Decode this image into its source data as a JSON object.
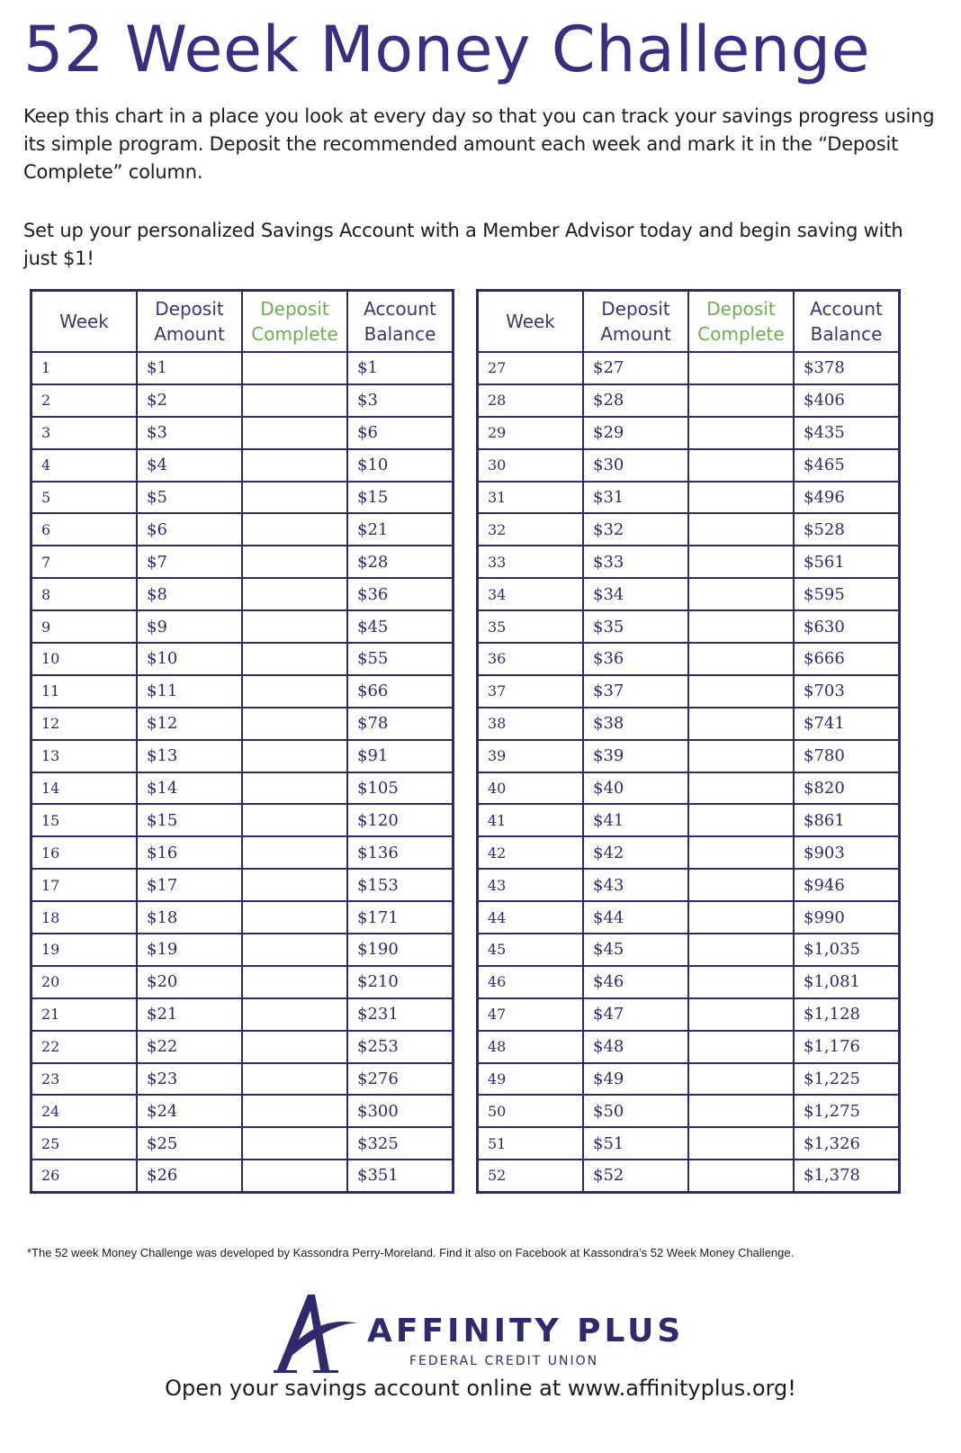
{
  "title": "52 Week Money Challenge",
  "intro": "Keep this chart in a place you look at every day so that you can track your savings progress using its simple program. Deposit the recommended amount each week and mark it in the “Deposit Complete” column.",
  "cta_text": "Set up your personalized Savings Account with a Member Advisor today and begin saving with just $1!",
  "table": {
    "headers": {
      "week": "Week",
      "deposit_amount_1": "Deposit",
      "deposit_amount_2": "Amount",
      "deposit_complete_1": "Deposit",
      "deposit_complete_2": "Complete",
      "account_balance_1": "Account",
      "account_balance_2": "Balance"
    },
    "header_colors": {
      "default": "#3b3570",
      "deposit_complete": "#6dac4f"
    },
    "rows": [
      [
        "1",
        "$1",
        "$1"
      ],
      [
        "2",
        "$2",
        "$3"
      ],
      [
        "3",
        "$3",
        "$6"
      ],
      [
        "4",
        "$4",
        "$10"
      ],
      [
        "5",
        "$5",
        "$15"
      ],
      [
        "6",
        "$6",
        "$21"
      ],
      [
        "7",
        "$7",
        "$28"
      ],
      [
        "8",
        "$8",
        "$36"
      ],
      [
        "9",
        "$9",
        "$45"
      ],
      [
        "10",
        "$10",
        "$55"
      ],
      [
        "11",
        "$11",
        "$66"
      ],
      [
        "12",
        "$12",
        "$78"
      ],
      [
        "13",
        "$13",
        "$91"
      ],
      [
        "14",
        "$14",
        "$105"
      ],
      [
        "15",
        "$15",
        "$120"
      ],
      [
        "16",
        "$16",
        "$136"
      ],
      [
        "17",
        "$17",
        "$153"
      ],
      [
        "18",
        "$18",
        "$171"
      ],
      [
        "19",
        "$19",
        "$190"
      ],
      [
        "20",
        "$20",
        "$210"
      ],
      [
        "21",
        "$21",
        "$231"
      ],
      [
        "22",
        "$22",
        "$253"
      ],
      [
        "23",
        "$23",
        "$276"
      ],
      [
        "24",
        "$24",
        "$300"
      ],
      [
        "25",
        "$25",
        "$325"
      ],
      [
        "26",
        "$26",
        "$351"
      ],
      [
        "27",
        "$27",
        "$378"
      ],
      [
        "28",
        "$28",
        "$406"
      ],
      [
        "29",
        "$29",
        "$435"
      ],
      [
        "30",
        "$30",
        "$465"
      ],
      [
        "31",
        "$31",
        "$496"
      ],
      [
        "32",
        "$32",
        "$528"
      ],
      [
        "33",
        "$33",
        "$561"
      ],
      [
        "34",
        "$34",
        "$595"
      ],
      [
        "35",
        "$35",
        "$630"
      ],
      [
        "36",
        "$36",
        "$666"
      ],
      [
        "37",
        "$37",
        "$703"
      ],
      [
        "38",
        "$38",
        "$741"
      ],
      [
        "39",
        "$39",
        "$780"
      ],
      [
        "40",
        "$40",
        "$820"
      ],
      [
        "41",
        "$41",
        "$861"
      ],
      [
        "42",
        "$42",
        "$903"
      ],
      [
        "43",
        "$43",
        "$946"
      ],
      [
        "44",
        "$44",
        "$990"
      ],
      [
        "45",
        "$45",
        "$1,035"
      ],
      [
        "46",
        "$46",
        "$1,081"
      ],
      [
        "47",
        "$47",
        "$1,128"
      ],
      [
        "48",
        "$48",
        "$1,176"
      ],
      [
        "49",
        "$49",
        "$1,225"
      ],
      [
        "50",
        "$50",
        "$1,275"
      ],
      [
        "51",
        "$51",
        "$1,326"
      ],
      [
        "52",
        "$52",
        "$1,378"
      ]
    ]
  },
  "footnote": "*The 52 week Money Challenge was developed by Kassondra Perry-Moreland. Find it also on Facebook at Kassondra’s 52 Week Money Challenge.",
  "logo": {
    "name": "AFFINITY PLUS",
    "subtitle": "FEDERAL CREDIT UNION",
    "color": "#2e2a6b"
  },
  "footer_cta": "Open your savings account online at www.affinityplus.org!"
}
